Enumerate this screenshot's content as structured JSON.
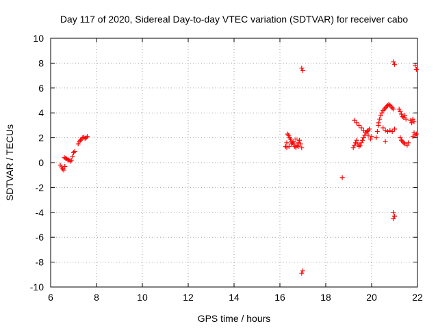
{
  "chart_data": {
    "type": "scatter",
    "title": "Day 117 of 2020, Sidereal Day-to-day VTEC variation (SDTVAR) for receiver cabo",
    "xlabel": "GPS time / hours",
    "ylabel": "SDTVAR / TECUs",
    "xlim": [
      6,
      22
    ],
    "ylim": [
      -10,
      10
    ],
    "xticks": [
      6,
      8,
      10,
      12,
      14,
      16,
      18,
      20,
      22
    ],
    "yticks": [
      -10,
      -8,
      -6,
      -4,
      -2,
      0,
      2,
      4,
      6,
      8,
      10
    ],
    "grid": true,
    "marker": "+",
    "color": "#ff0000",
    "series": [
      {
        "name": "SDTVAR",
        "x": [
          6.42,
          6.47,
          6.52,
          6.57,
          6.62,
          6.6,
          6.65,
          6.7,
          6.75,
          6.8,
          6.85,
          6.9,
          6.95,
          7.0,
          7.05,
          7.2,
          7.25,
          7.3,
          7.35,
          7.4,
          7.45,
          7.5,
          7.55,
          7.6,
          16.25,
          16.3,
          16.33,
          16.38,
          16.42,
          16.46,
          16.5,
          16.55,
          16.6,
          16.65,
          16.7,
          16.75,
          16.8,
          16.85,
          16.9,
          16.95,
          16.3,
          16.4,
          16.5,
          16.6,
          16.7,
          16.8,
          16.95,
          17.0,
          16.95,
          17.0,
          18.72,
          19.2,
          19.25,
          19.3,
          19.35,
          19.4,
          19.45,
          19.5,
          19.55,
          19.6,
          19.65,
          19.7,
          19.75,
          19.8,
          19.85,
          19.9,
          19.25,
          19.35,
          19.45,
          19.55,
          19.65,
          19.75,
          19.85,
          19.95,
          20.0,
          20.2,
          20.25,
          20.3,
          20.35,
          20.4,
          20.45,
          20.5,
          20.55,
          20.6,
          20.65,
          20.7,
          20.75,
          20.8,
          20.85,
          20.9,
          20.95,
          20.3,
          20.5,
          20.6,
          20.7,
          20.8,
          20.9,
          21.0,
          20.6,
          20.95,
          21.0,
          20.95,
          21.0,
          20.95,
          21.2,
          21.25,
          21.3,
          21.35,
          21.4,
          21.45,
          21.5,
          21.25,
          21.3,
          21.35,
          21.4,
          21.45,
          21.55,
          21.6,
          21.7,
          21.75,
          21.8,
          21.85,
          21.9,
          21.95,
          21.8,
          21.85,
          21.9,
          21.95
        ],
        "y": [
          -0.2,
          -0.35,
          -0.5,
          -0.6,
          -0.3,
          0.4,
          0.35,
          0.3,
          0.25,
          0.2,
          0.1,
          0.2,
          0.5,
          0.8,
          0.9,
          1.5,
          1.7,
          1.8,
          1.9,
          2.0,
          2.05,
          1.95,
          2.0,
          2.1,
          1.3,
          1.6,
          2.3,
          2.2,
          2.0,
          1.9,
          1.7,
          1.6,
          1.5,
          1.3,
          1.2,
          1.4,
          1.6,
          1.8,
          1.5,
          1.2,
          1.2,
          1.3,
          1.5,
          1.7,
          1.9,
          1.3,
          7.6,
          7.4,
          -8.9,
          -8.7,
          -1.2,
          1.2,
          1.4,
          1.6,
          1.8,
          1.5,
          1.3,
          1.4,
          1.6,
          1.8,
          2.0,
          2.2,
          2.4,
          2.5,
          2.6,
          2.7,
          3.4,
          3.2,
          3.0,
          2.8,
          2.6,
          2.4,
          2.2,
          1.9,
          2.1,
          2.0,
          2.5,
          3.0,
          3.5,
          3.8,
          4.0,
          4.2,
          4.3,
          4.4,
          4.5,
          4.6,
          4.7,
          4.6,
          4.5,
          4.4,
          4.3,
          3.2,
          2.8,
          2.6,
          2.5,
          2.6,
          2.5,
          2.7,
          1.7,
          8.1,
          7.9,
          -4.0,
          -4.3,
          -4.5,
          4.3,
          4.1,
          3.9,
          3.7,
          3.6,
          3.8,
          3.5,
          2.0,
          1.8,
          1.7,
          1.6,
          1.5,
          1.4,
          1.6,
          3.4,
          3.2,
          3.5,
          3.3,
          2.2,
          2.3,
          2.1,
          2.4,
          7.8,
          7.5
        ]
      }
    ]
  }
}
